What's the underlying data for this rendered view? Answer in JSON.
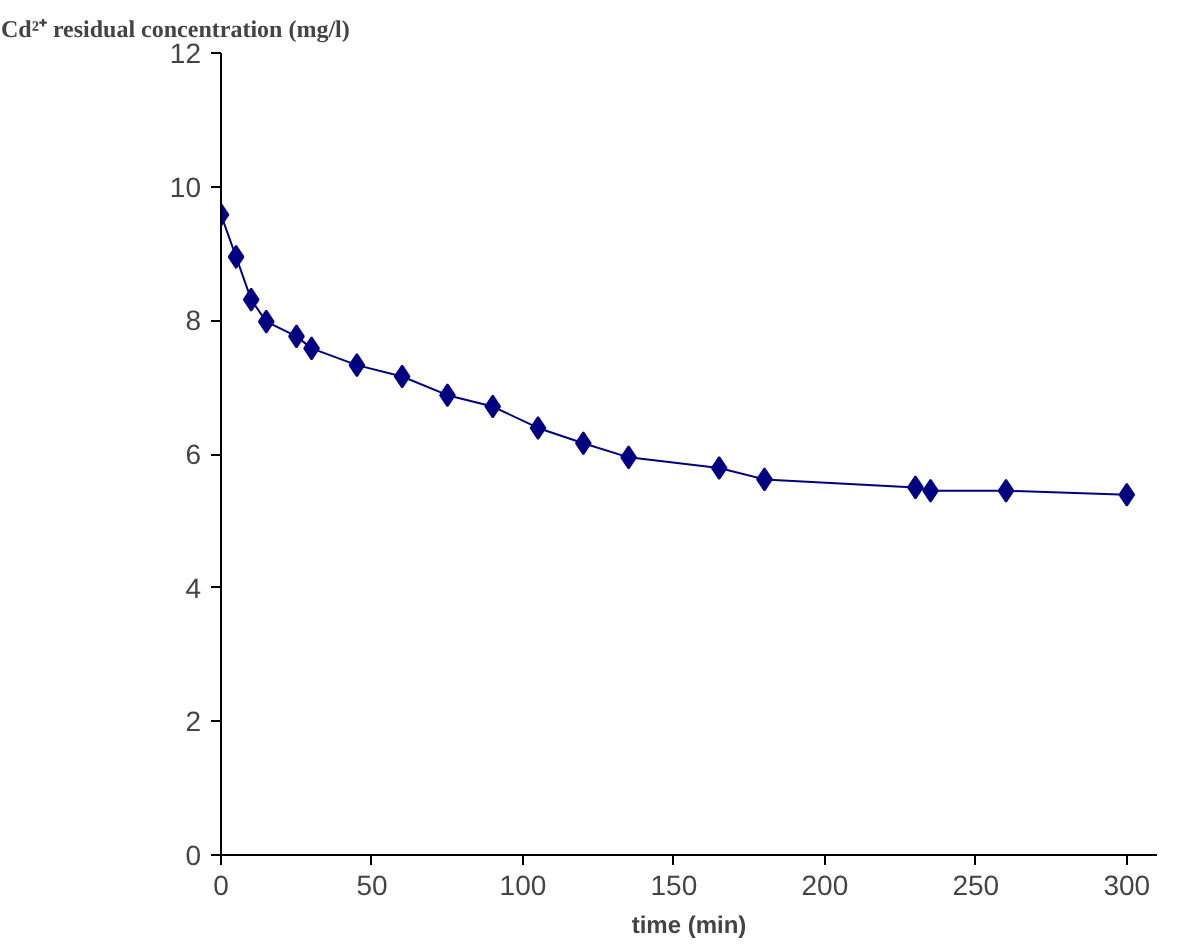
{
  "chart_data": {
    "type": "line",
    "title": "Cd²⁺ residual concentration (mg/l)",
    "xlabel": "time (min)",
    "x": [
      0,
      5,
      10,
      15,
      25,
      30,
      45,
      60,
      75,
      90,
      105,
      120,
      135,
      165,
      180,
      230,
      235,
      260,
      300
    ],
    "series": [
      {
        "color": "#000080",
        "values": [
          9.58,
          8.95,
          8.31,
          7.98,
          7.76,
          7.58,
          7.33,
          7.16,
          6.88,
          6.71,
          6.39,
          6.16,
          5.95,
          5.79,
          5.62,
          5.5,
          5.45,
          5.45,
          5.39
        ]
      }
    ],
    "xlim": [
      0,
      310
    ],
    "ylim": [
      0,
      12
    ],
    "xticks": [
      0,
      50,
      100,
      150,
      200,
      250,
      300
    ],
    "yticks": [
      0,
      2,
      4,
      6,
      8,
      10,
      12
    ],
    "grid": false,
    "marker": "diamond",
    "line_style": "solid"
  }
}
